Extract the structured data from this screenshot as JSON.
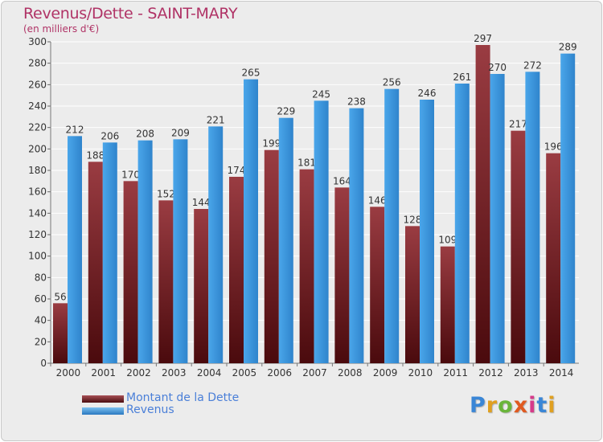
{
  "chart_data": {
    "type": "bar",
    "title": "Revenus/Dette - SAINT-MARY",
    "subtitle": "(en milliers d'€)",
    "categories": [
      "2000",
      "2001",
      "2002",
      "2003",
      "2004",
      "2005",
      "2006",
      "2007",
      "2008",
      "2009",
      "2010",
      "2011",
      "2012",
      "2013",
      "2014"
    ],
    "series": [
      {
        "name": "Montant de la Dette",
        "color": "#7a1f22",
        "values": [
          56,
          188,
          170,
          152,
          144,
          174,
          199,
          181,
          164,
          146,
          128,
          109,
          297,
          217,
          196
        ]
      },
      {
        "name": "Revenus",
        "color": "#4a9de0",
        "values": [
          212,
          206,
          208,
          209,
          221,
          265,
          229,
          245,
          238,
          256,
          246,
          261,
          270,
          272,
          289
        ]
      }
    ],
    "ylim": [
      0,
      300
    ],
    "yticks": [
      0,
      20,
      40,
      60,
      80,
      100,
      120,
      140,
      160,
      180,
      200,
      220,
      240,
      260,
      280,
      300
    ],
    "grid": true,
    "legend_position": "bottom-left"
  },
  "logo_text": "Proxiti",
  "colors": {
    "title": "#b03366",
    "legend_text": "#4a7fd8",
    "background": "#ececec"
  }
}
